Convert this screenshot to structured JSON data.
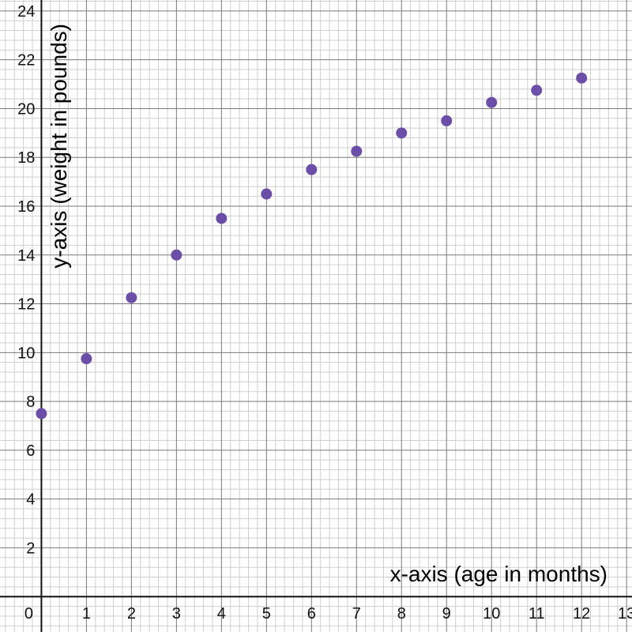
{
  "chart_data": {
    "type": "scatter",
    "xlabel": "x-axis (age in months)",
    "ylabel": "y-axis (weight in pounds)",
    "xlim": [
      -0.92,
      13.12
    ],
    "ylim": [
      -1.45,
      24.45
    ],
    "grid": true,
    "x_ticks": [
      "0",
      "1",
      "2",
      "3",
      "4",
      "5",
      "6",
      "7",
      "8",
      "9",
      "10",
      "11",
      "12",
      "13"
    ],
    "y_ticks": [
      "2",
      "4",
      "6",
      "8",
      "10",
      "12",
      "14",
      "16",
      "18",
      "20",
      "22",
      "24"
    ],
    "point_color": "#6b4ea8",
    "points": [
      {
        "x": 0,
        "y": 7.5
      },
      {
        "x": 1,
        "y": 9.75
      },
      {
        "x": 2,
        "y": 12.25
      },
      {
        "x": 3,
        "y": 14
      },
      {
        "x": 4,
        "y": 15.5
      },
      {
        "x": 5,
        "y": 16.5
      },
      {
        "x": 6,
        "y": 17.5
      },
      {
        "x": 7,
        "y": 18.25
      },
      {
        "x": 8,
        "y": 19
      },
      {
        "x": 9,
        "y": 19.5
      },
      {
        "x": 10,
        "y": 20.25
      },
      {
        "x": 11,
        "y": 20.75
      },
      {
        "x": 12,
        "y": 21.25
      }
    ]
  }
}
